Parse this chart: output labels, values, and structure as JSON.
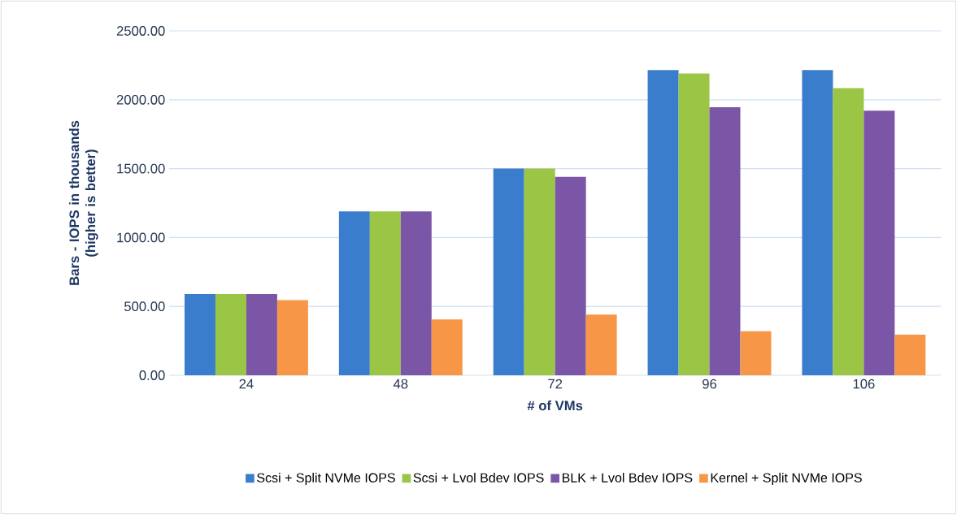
{
  "chart_data": {
    "type": "bar",
    "xlabel": "# of VMs",
    "ylabel": "Bars - IOPS in thousands (higher is better)",
    "categories": [
      "24",
      "48",
      "72",
      "96",
      "106"
    ],
    "series": [
      {
        "name": "Scsi + Split NVMe IOPS",
        "color": "#3a7dcc",
        "values": [
          590,
          1190,
          1500,
          2215,
          2215
        ]
      },
      {
        "name": "Scsi + Lvol Bdev IOPS",
        "color": "#9bc544",
        "values": [
          590,
          1190,
          1500,
          2190,
          2085
        ]
      },
      {
        "name": "BLK + Lvol Bdev IOPS",
        "color": "#7b56a6",
        "values": [
          590,
          1190,
          1440,
          1945,
          1920
        ]
      },
      {
        "name": "Kernel + Split NVMe IOPS",
        "color": "#f79646",
        "values": [
          545,
          405,
          440,
          320,
          295
        ]
      }
    ],
    "ylim": [
      0,
      2500
    ],
    "yticks": [
      {
        "value": 0,
        "label": "0.00"
      },
      {
        "value": 500,
        "label": "500.00"
      },
      {
        "value": 1000,
        "label": "1000.00"
      },
      {
        "value": 1500,
        "label": "1500.00"
      },
      {
        "value": 2000,
        "label": "2000.00"
      },
      {
        "value": 2500,
        "label": "2500.00"
      }
    ],
    "grid": "y",
    "legend": "bottom"
  }
}
